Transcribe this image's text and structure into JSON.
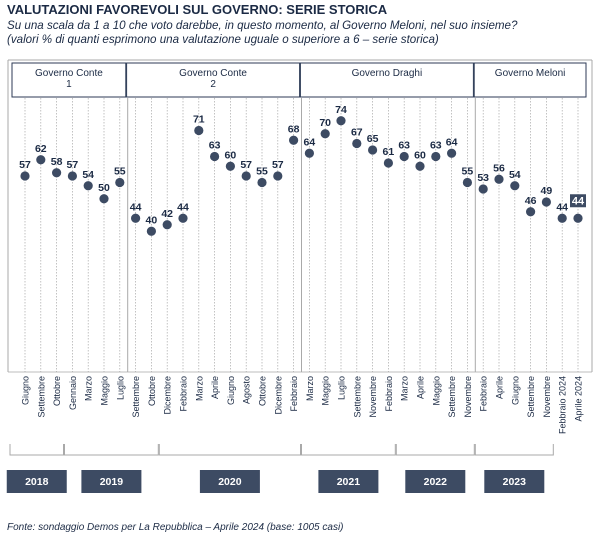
{
  "title": "VALUTAZIONI FAVOREVOLI SUL GOVERNO: SERIE STORICA",
  "subtitle_line1": "Su una scala da 1 a 10 che voto darebbe, in questo momento, al Governo Meloni, nel suo insieme?",
  "subtitle_line2": "(valori % di quanti esprimono una valutazione uguale o superiore a 6 – serie storica)",
  "source": "Fonte: sondaggio Demos per La Repubblica – Aprile 2024 (base: 1005 casi)",
  "colors": {
    "marker": "#3d4b63",
    "text": "#1b2a44",
    "grid": "#a9a9a9",
    "box_border": "#2c3a55",
    "year_box": "#3d4b63",
    "year_text": "#ffffff",
    "last_label_bg": "#3d4b63"
  },
  "chart_data": {
    "type": "line",
    "title": "VALUTAZIONI FAVOREVOLI SUL GOVERNO: SERIE STORICA",
    "grid": true,
    "ylim": [
      30,
      80
    ],
    "governments": [
      {
        "name_lines": [
          "Governo Conte",
          "1"
        ],
        "start": 0,
        "end": 6
      },
      {
        "name_lines": [
          "Governo Conte",
          "2"
        ],
        "start": 7,
        "end": 17
      },
      {
        "name_lines": [
          "Governo Draghi"
        ],
        "start": 18,
        "end": 28
      },
      {
        "name_lines": [
          "Governo Meloni"
        ],
        "start": 29,
        "end": 35
      }
    ],
    "years": [
      {
        "label": "2018",
        "start": 0,
        "end": 2
      },
      {
        "label": "2019",
        "start": 3,
        "end": 8
      },
      {
        "label": "2020",
        "start": 9,
        "end": 17
      },
      {
        "label": "2021",
        "start": 18,
        "end": 23
      },
      {
        "label": "2022",
        "start": 24,
        "end": 28
      },
      {
        "label": "2023",
        "start": 29,
        "end": 33
      }
    ],
    "categories": [
      "Giugno",
      "Settembre",
      "Ottobre",
      "Gennaio",
      "Marzo",
      "Maggio",
      "Luglio",
      "Settembre",
      "Ottobre",
      "Dicembre",
      "Febbraio",
      "Marzo",
      "Aprile",
      "Giugno",
      "Agosto",
      "Ottobre",
      "Dicembre",
      "Febbraio",
      "Marzo",
      "Maggio",
      "Luglio",
      "Settembre",
      "Novembre",
      "Febbraio",
      "Marzo",
      "Aprile",
      "Maggio",
      "Settembre",
      "Novembre",
      "Febbraio",
      "Aprile",
      "Giugno",
      "Settembre",
      "Novembre",
      "Febbraio 2024",
      "Aprile 2024"
    ],
    "values": [
      57,
      62,
      58,
      57,
      54,
      50,
      55,
      44,
      40,
      42,
      44,
      71,
      63,
      60,
      57,
      55,
      57,
      68,
      64,
      70,
      74,
      67,
      65,
      61,
      63,
      60,
      63,
      64,
      55,
      53,
      56,
      54,
      46,
      49,
      44,
      44
    ],
    "last_point_label": "44"
  }
}
